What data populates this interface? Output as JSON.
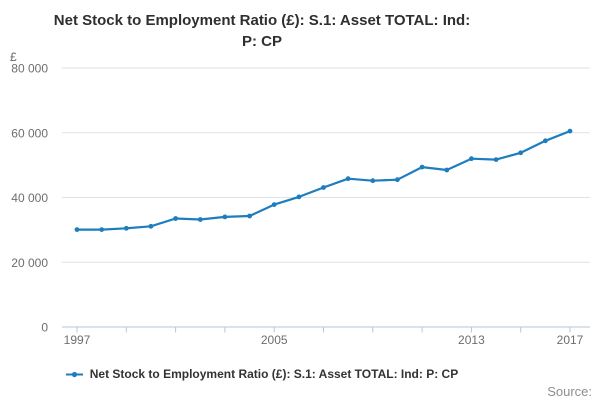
{
  "title": {
    "line1": "Net Stock to Employment Ratio (£): S.1: Asset TOTAL: Ind:",
    "line2": "P: CP"
  },
  "legend": {
    "label": "Net Stock to Employment Ratio (£): S.1: Asset TOTAL: Ind: P: CP",
    "color": "#1e7dbe"
  },
  "source_label": "Source:",
  "colors": {
    "line": "#1e7dbe",
    "gridline": "#e2e2e2",
    "axis": "#b7c6d1",
    "tick_text": "#6e6e6e"
  },
  "chart_data": {
    "type": "line",
    "title": "Net Stock to Employment Ratio (£): S.1: Asset TOTAL: Ind: P: CP",
    "xlabel": "",
    "ylabel": "£",
    "ylim": [
      0,
      80000
    ],
    "grid": "horizontal",
    "legend_position": "bottom",
    "x": [
      1997,
      1998,
      1999,
      2000,
      2001,
      2002,
      2003,
      2004,
      2005,
      2006,
      2007,
      2008,
      2009,
      2010,
      2011,
      2012,
      2013,
      2014,
      2015,
      2016,
      2017
    ],
    "series": [
      {
        "name": "Net Stock to Employment Ratio (£): S.1: Asset TOTAL: Ind: P: CP",
        "color": "#1e7dbe",
        "values": [
          30100,
          30100,
          30500,
          31100,
          33500,
          33200,
          34000,
          34300,
          37800,
          40200,
          43100,
          45800,
          45200,
          45500,
          49400,
          48500,
          52000,
          51700,
          53800,
          57500,
          60500
        ]
      }
    ],
    "yticks": [
      0,
      20000,
      40000,
      60000,
      80000
    ],
    "ytick_labels": [
      "0",
      "20 000",
      "40 000",
      "60 000",
      "80 000"
    ],
    "xtick_marks": [
      1997,
      1999,
      2001,
      2003,
      2005,
      2007,
      2009,
      2011,
      2013,
      2015,
      2017
    ],
    "xtick_labels": [
      {
        "year": 1997,
        "label": "1997"
      },
      {
        "year": 2005,
        "label": "2005"
      },
      {
        "year": 2013,
        "label": "2013"
      },
      {
        "year": 2017,
        "label": "2017"
      }
    ]
  }
}
